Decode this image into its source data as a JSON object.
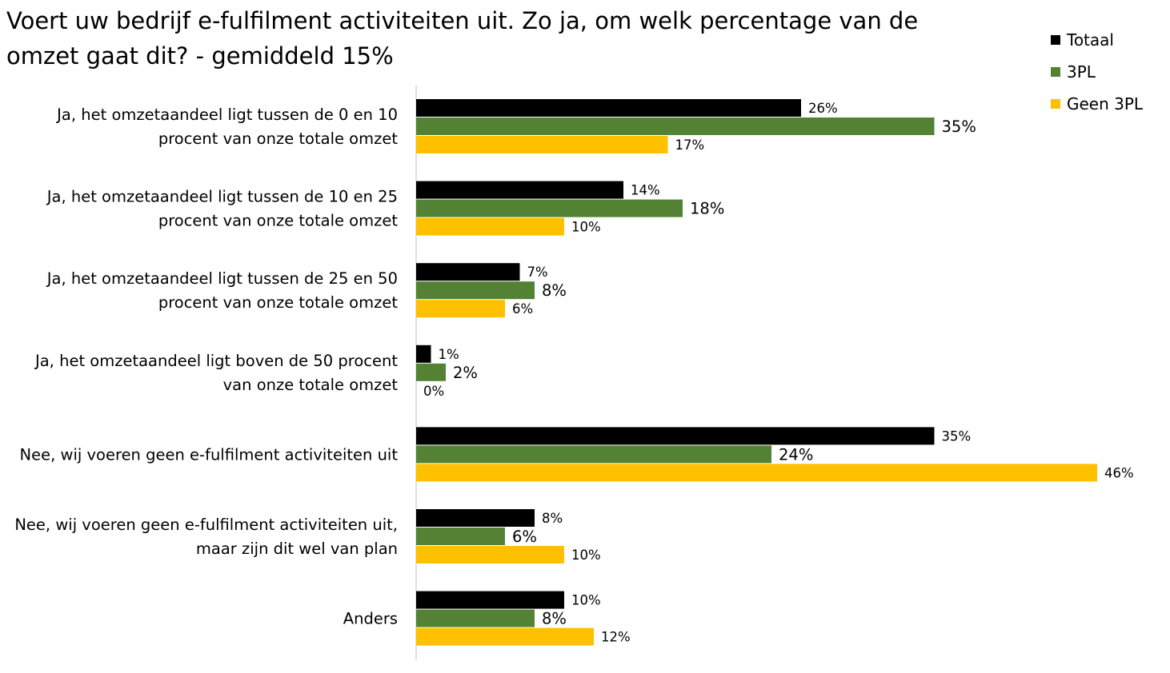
{
  "chart_data": {
    "type": "bar",
    "orientation": "horizontal",
    "title": "Voert uw bedrijf e-fulfilment activiteiten uit. Zo ja, om welk percentage van de omzet gaat dit?    - gemiddeld 15%",
    "categories": [
      [
        "Ja, het omzetaandeel ligt tussen de 0 en 10",
        "procent van onze totale omzet"
      ],
      [
        "Ja, het omzetaandeel ligt tussen de 10 en 25",
        "procent van onze totale omzet"
      ],
      [
        "Ja, het omzetaandeel ligt tussen de 25 en 50",
        "procent van onze totale omzet"
      ],
      [
        "Ja, het omzetaandeel ligt boven de 50 procent",
        "van onze totale omzet"
      ],
      [
        "Nee, wij voeren geen e-fulfilment activiteiten uit"
      ],
      [
        "Nee, wij voeren geen e-fulfilment activiteiten uit,",
        "maar zijn dit wel van plan"
      ],
      [
        "Anders"
      ]
    ],
    "series": [
      {
        "name": "Totaal",
        "color": "#000000",
        "values": [
          26,
          14,
          7,
          1,
          35,
          8,
          10
        ]
      },
      {
        "name": "3PL",
        "color": "#548235",
        "values": [
          35,
          18,
          8,
          2,
          24,
          6,
          8
        ]
      },
      {
        "name": "Geen 3PL",
        "color": "#FFC000",
        "values": [
          17,
          10,
          6,
          0,
          46,
          10,
          12
        ]
      }
    ],
    "value_format": "percent",
    "xlim": [
      0,
      46
    ],
    "grid": false,
    "legend": "top-right"
  }
}
